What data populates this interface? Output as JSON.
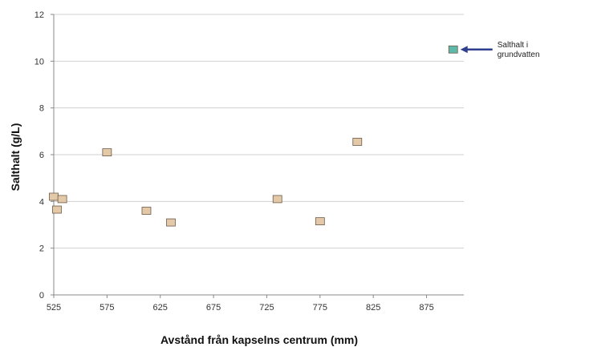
{
  "chart_data": {
    "type": "scatter",
    "title": "",
    "xlabel": "Avstånd från kapselns centrum (mm)",
    "ylabel": "Salthalt (g/L)",
    "xlim": [
      525,
      910
    ],
    "ylim": [
      0,
      12
    ],
    "xticks": [
      525,
      575,
      625,
      675,
      725,
      775,
      825,
      875
    ],
    "yticks": [
      0,
      2,
      4,
      6,
      8,
      10,
      12
    ],
    "grid": {
      "horizontal": true,
      "vertical": false
    },
    "series": [
      {
        "color": "#e3c9a8",
        "points": [
          {
            "x": 525,
            "y": 4.2
          },
          {
            "x": 528,
            "y": 3.65
          },
          {
            "x": 533,
            "y": 4.1
          },
          {
            "x": 575,
            "y": 6.1
          },
          {
            "x": 612,
            "y": 3.6
          },
          {
            "x": 635,
            "y": 3.1
          },
          {
            "x": 735,
            "y": 4.1
          },
          {
            "x": 775,
            "y": 3.15
          },
          {
            "x": 810,
            "y": 6.55
          }
        ]
      },
      {
        "color": "#5fb8a8",
        "points": [
          {
            "x": 900,
            "y": 10.5
          }
        ]
      }
    ],
    "annotation": {
      "lines": [
        "Salthalt i",
        "grundvatten"
      ],
      "target": {
        "x": 900,
        "y": 10.5
      },
      "arrow_color": "#2e3f8f"
    }
  }
}
